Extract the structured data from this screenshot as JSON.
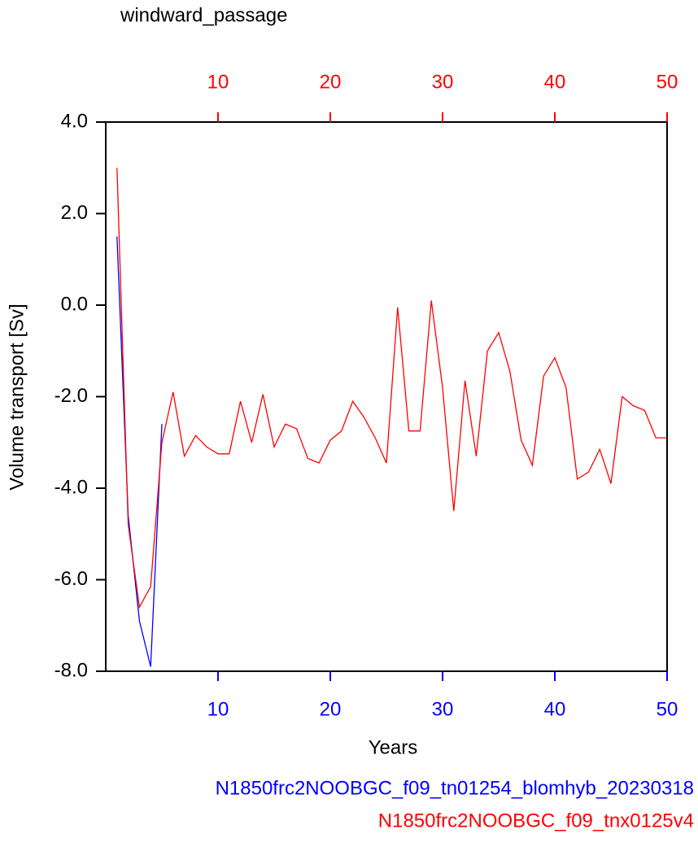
{
  "chart_data": {
    "type": "line",
    "title": "windward_passage",
    "x_label": "Years",
    "y_label": "Volume transport [Sv]",
    "xlim": [
      0,
      50
    ],
    "xticks": [
      10,
      20,
      30,
      40,
      50
    ],
    "x2ticks": [
      10,
      20,
      30,
      40,
      50
    ],
    "ylim": [
      -8,
      4
    ],
    "yticks": [
      {
        "value": -8,
        "label": "-8.0"
      },
      {
        "value": -6,
        "label": "-6.0"
      },
      {
        "value": -4,
        "label": "-4.0"
      },
      {
        "value": -2,
        "label": "-2.0"
      },
      {
        "value": 0,
        "label": "0.0"
      },
      {
        "value": 2,
        "label": "2.0"
      },
      {
        "value": 4,
        "label": "4.0"
      }
    ],
    "xtick_color": "#0000ff",
    "x2tick_color": "#ff0000",
    "series": [
      {
        "name": "N1850frc2NOOBGC_f09_tn01254_blomhyb_20230318",
        "color": "#0000ff",
        "x": [
          1,
          2,
          3,
          4,
          5
        ],
        "values": [
          1.5,
          -4.6,
          -6.9,
          -7.9,
          -2.6
        ]
      },
      {
        "name": "N1850frc2NOOBGC_f09_tnx0125v4",
        "color": "#ff0000",
        "x": [
          1,
          2,
          3,
          4,
          5,
          6,
          7,
          8,
          9,
          10,
          11,
          12,
          13,
          14,
          15,
          16,
          17,
          18,
          19,
          20,
          21,
          22,
          23,
          24,
          25,
          26,
          27,
          28,
          29,
          30,
          31,
          32,
          33,
          34,
          35,
          36,
          37,
          38,
          39,
          40,
          41,
          42,
          43,
          44,
          45,
          46,
          47,
          48,
          49,
          50
        ],
        "values": [
          3.0,
          -4.8,
          -6.6,
          -6.15,
          -3.0,
          -1.9,
          -3.3,
          -2.85,
          -3.1,
          -3.25,
          -3.25,
          -2.1,
          -3.0,
          -1.95,
          -3.1,
          -2.6,
          -2.7,
          -3.35,
          -3.45,
          -2.95,
          -2.75,
          -2.1,
          -2.45,
          -2.9,
          -3.45,
          -0.05,
          -2.75,
          -2.75,
          0.1,
          -1.8,
          -4.5,
          -1.65,
          -3.3,
          -1.0,
          -0.6,
          -1.45,
          -2.95,
          -3.5,
          -1.55,
          -1.15,
          -1.8,
          -3.8,
          -3.65,
          -3.15,
          -3.9,
          -2.0,
          -2.2,
          -2.3,
          -2.9,
          -2.9
        ]
      }
    ]
  }
}
